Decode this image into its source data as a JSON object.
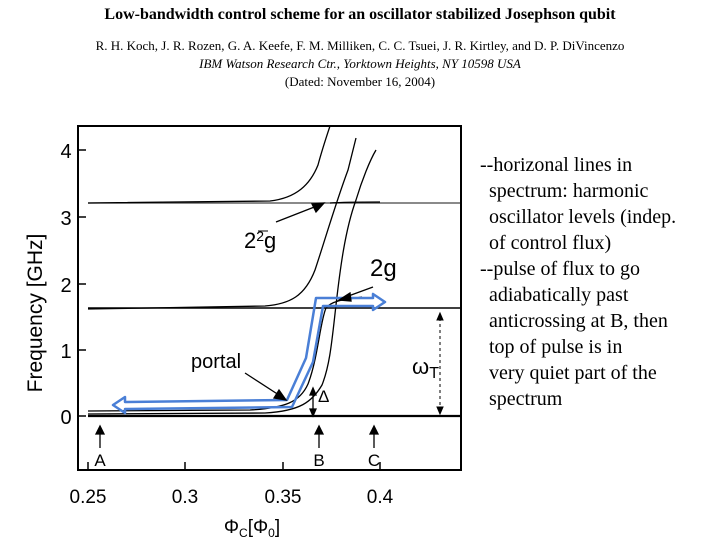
{
  "paper": {
    "title": "Low-bandwidth control scheme for an oscillator stabilized Josephson qubit",
    "authors": "R. H. Koch, J. R. Rozen, G. A. Keefe, F. M. Milliken, C. C. Tsuei, J. R. Kirtley, and D. P. DiVincenzo",
    "affiliation": "IBM Watson Research Ctr., Yorktown Heights, NY 10598 USA",
    "dated": "(Dated: November 16, 2004)"
  },
  "figure": {
    "y_axis_label": "Frequency [GHz]",
    "x_axis_label": "Φ",
    "x_axis_sub": "C",
    "x_axis_bracket_open": "[Φ",
    "x_axis_bracket_sub": "0",
    "x_axis_bracket_close": "]",
    "y_ticks": [
      "0",
      "1",
      "2",
      "3",
      "4"
    ],
    "x_ticks": [
      "0.25",
      "0.3",
      "0.35",
      "0.4"
    ],
    "point_labels": [
      "A",
      "B",
      "C"
    ],
    "label_2g": "2g",
    "label_2root2g_prefix": "2",
    "label_2root2g_root": "2",
    "label_2root2g_suffix": "g",
    "label_portal": "portal",
    "label_delta": "Δ",
    "label_omega": "ω",
    "label_omega_sub": "T"
  },
  "notes": {
    "lines": [
      "--horizonal lines in",
      "spectrum: harmonic",
      "oscillator levels (indep.",
      "of control flux)",
      "--pulse of flux to go",
      "adiabatically past",
      "anticrossing at B, then",
      "top of pulse is in",
      "very quiet part of the",
      "spectrum"
    ]
  },
  "colors": {
    "pulse": "#4a7fd6",
    "ink": "#000000"
  }
}
